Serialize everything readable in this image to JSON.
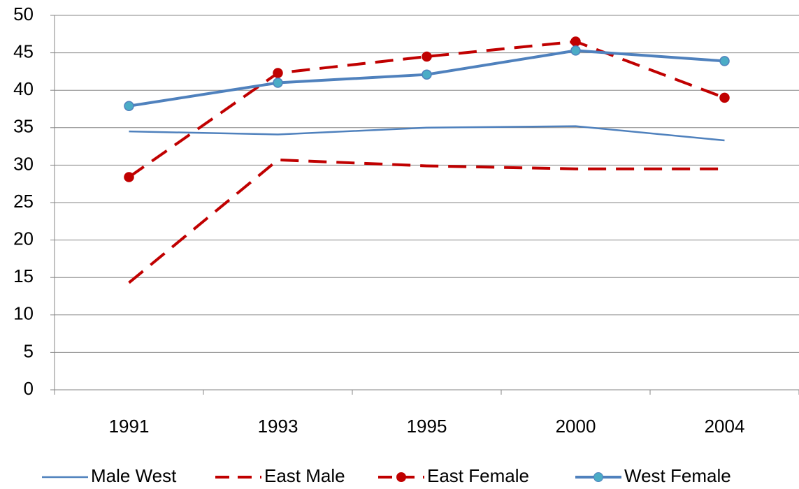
{
  "chart_data": {
    "type": "line",
    "categories": [
      "1991",
      "1993",
      "1995",
      "2000",
      "2004"
    ],
    "series": [
      {
        "name": "Male West",
        "color": "#4f81bd",
        "line_style": "solid",
        "line_width": 2.5,
        "marker": false,
        "values": [
          34.5,
          34.1,
          35.0,
          35.2,
          33.3
        ]
      },
      {
        "name": "East Male",
        "color": "#c00000",
        "line_style": "dashed",
        "line_width": 4,
        "marker": false,
        "values": [
          14.3,
          30.7,
          29.9,
          29.5,
          29.5
        ]
      },
      {
        "name": "East Female",
        "color": "#c00000",
        "line_style": "dashed",
        "line_width": 4,
        "marker": true,
        "values": [
          28.4,
          42.3,
          44.5,
          46.5,
          39.0
        ]
      },
      {
        "name": "West Female",
        "color": "#4f81bd",
        "line_style": "solid",
        "line_width": 4,
        "marker": true,
        "values": [
          37.9,
          41.0,
          42.1,
          45.3,
          43.9
        ]
      }
    ],
    "ylim": [
      0,
      50
    ],
    "yticks": [
      0,
      5,
      10,
      15,
      20,
      25,
      30,
      35,
      40,
      45,
      50
    ],
    "grid": true,
    "legend": "bottom"
  }
}
